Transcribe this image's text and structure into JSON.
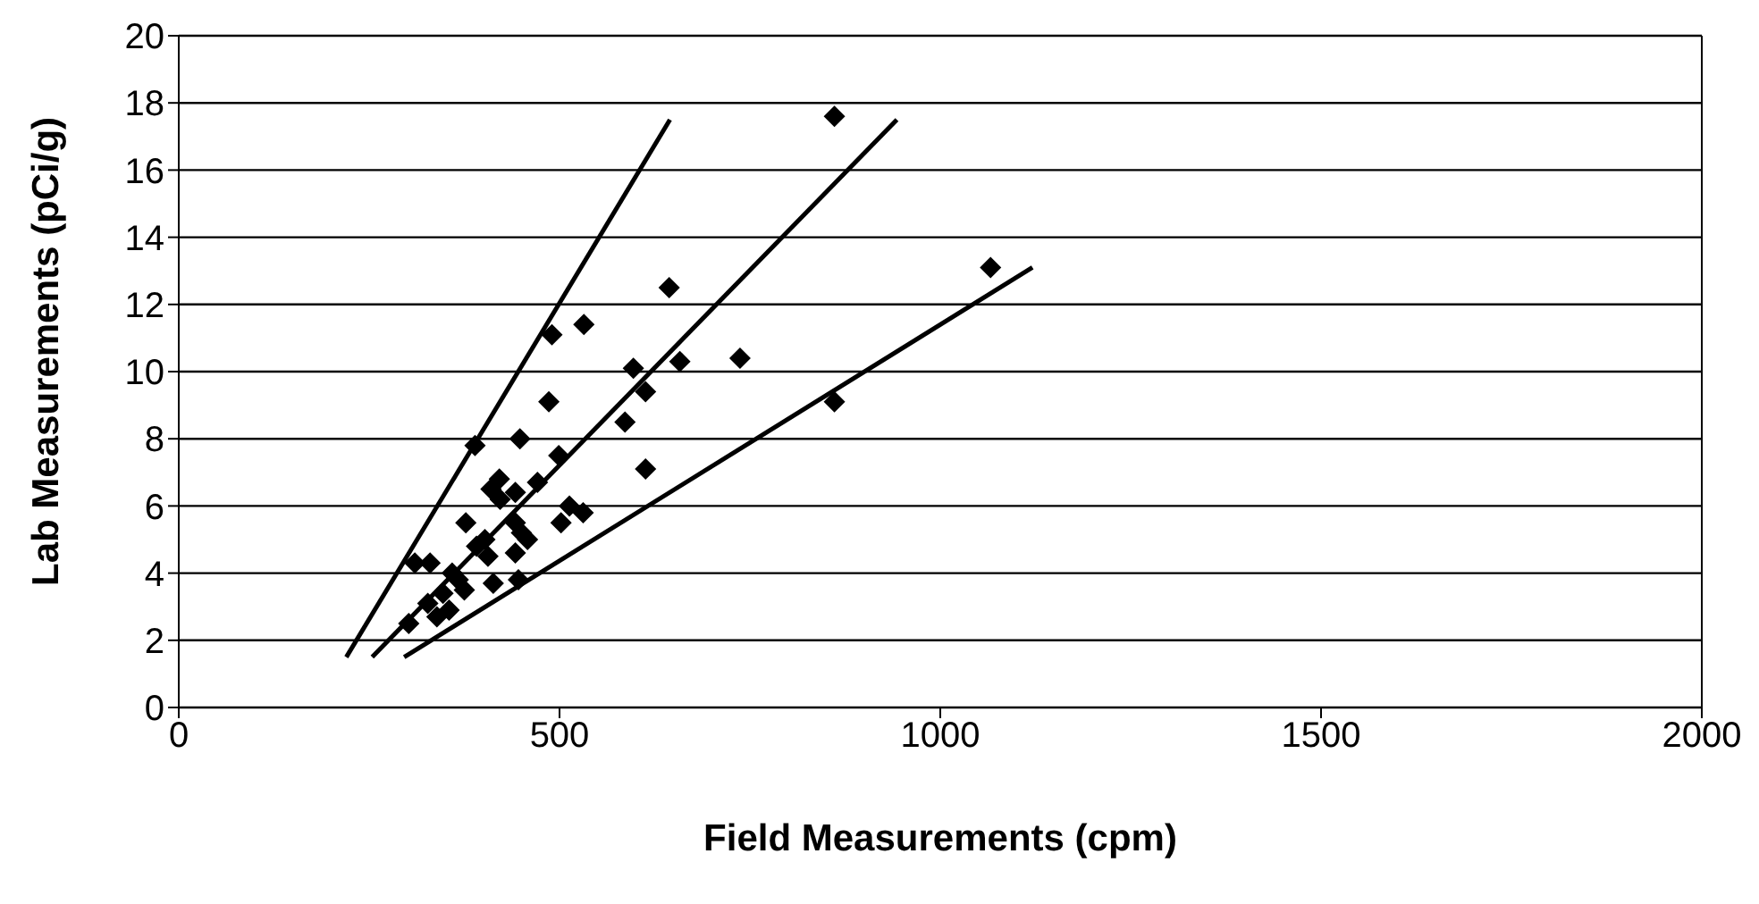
{
  "chart_data": {
    "type": "scatter",
    "xlabel": "Field Measurements (cpm)",
    "ylabel": "Lab Measurements (pCi/g)",
    "xlim": [
      0,
      2000
    ],
    "xticks": [
      0,
      500,
      1000,
      1500,
      2000
    ],
    "ylim": [
      0,
      20
    ],
    "yticks": [
      0,
      2,
      4,
      6,
      8,
      10,
      12,
      14,
      16,
      18,
      20
    ],
    "grid": "y",
    "legend": false,
    "series": [
      {
        "color": "#000000",
        "marker": "diamond",
        "x": [
          644,
          490,
          532,
          597,
          658,
          737,
          613,
          861,
          486,
          586,
          389,
          448,
          499,
          613,
          421,
          410,
          442,
          471,
          422,
          513,
          531,
          502,
          377,
          402,
          406,
          442,
          450,
          458,
          442,
          446,
          413,
          310,
          330,
          359,
          375,
          347,
          327,
          355,
          339,
          302,
          367,
          391,
          861,
          1066
        ],
        "values": [
          12.5,
          11.1,
          11.4,
          10.1,
          10.3,
          10.4,
          9.4,
          9.1,
          9.1,
          8.5,
          7.8,
          8.0,
          7.5,
          7.1,
          6.8,
          6.5,
          6.4,
          6.7,
          6.2,
          6.0,
          5.8,
          5.5,
          5.5,
          5.0,
          4.5,
          5.5,
          5.2,
          5.0,
          4.6,
          3.8,
          3.7,
          4.3,
          4.3,
          4.0,
          3.5,
          3.4,
          3.1,
          2.9,
          2.7,
          2.5,
          3.8,
          4.8,
          17.6,
          13.1
        ]
      },
      {
        "type": "line",
        "color": "#000000",
        "marker": "none",
        "line_style": "solid",
        "x": [
          220,
          645
        ],
        "values": [
          1.5,
          17.5
        ]
      },
      {
        "type": "line",
        "color": "#000000",
        "marker": "none",
        "line_style": "solid",
        "x": [
          254,
          943
        ],
        "values": [
          1.5,
          17.5
        ]
      },
      {
        "type": "line",
        "color": "#000000",
        "marker": "none",
        "line_style": "solid",
        "x": [
          296,
          1121
        ],
        "values": [
          1.5,
          13.1
        ]
      }
    ]
  }
}
